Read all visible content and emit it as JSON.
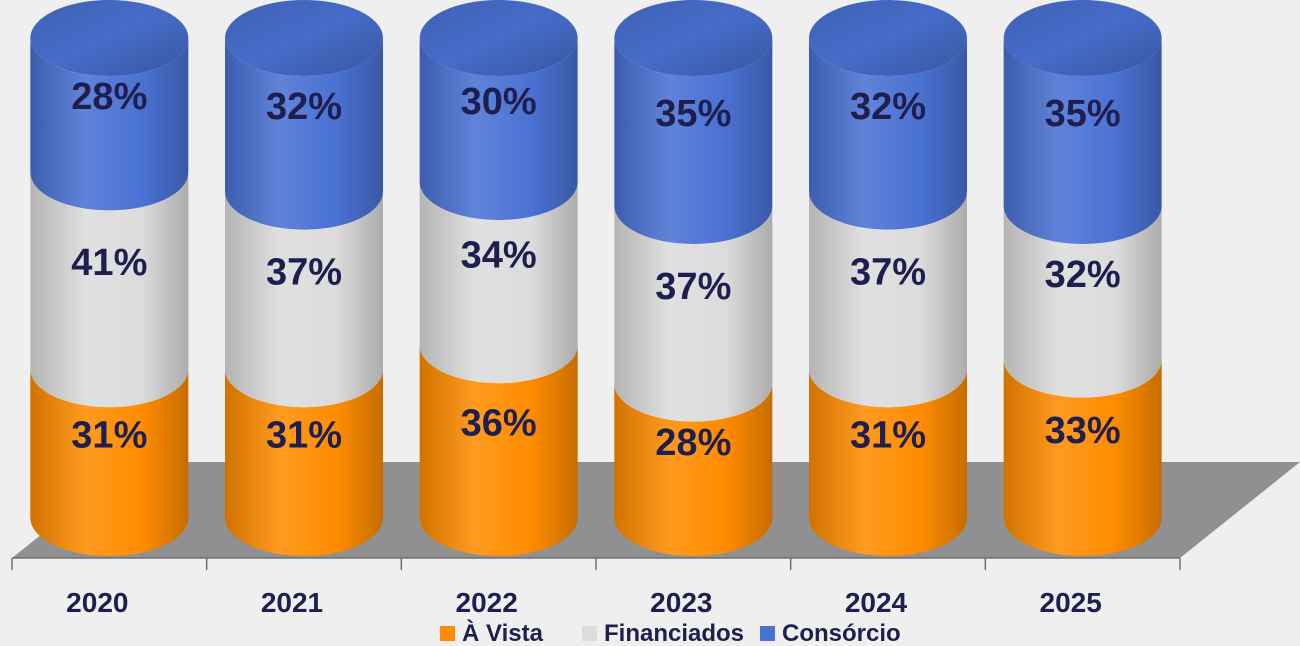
{
  "chart_data": {
    "type": "bar",
    "stacked": true,
    "percent_stacked": true,
    "style": "3d-cylinder",
    "categories": [
      "2020",
      "2021",
      "2022",
      "2023",
      "2024",
      "2025"
    ],
    "series": [
      {
        "name": "À Vista",
        "values": [
          31,
          31,
          36,
          28,
          31,
          33
        ],
        "color": "#ff8c00",
        "labels": [
          "31%",
          "31%",
          "36%",
          "28%",
          "31%",
          "33%"
        ]
      },
      {
        "name": "Financiados",
        "values": [
          41,
          37,
          34,
          37,
          37,
          32
        ],
        "color": "#dcdcdc",
        "labels": [
          "41%",
          "37%",
          "34%",
          "37%",
          "37%",
          "32%"
        ]
      },
      {
        "name": "Consórcio",
        "values": [
          28,
          32,
          30,
          35,
          32,
          35
        ],
        "color": "#4a72d4",
        "labels": [
          "28%",
          "32%",
          "30%",
          "35%",
          "32%",
          "35%"
        ]
      }
    ],
    "ylim": [
      0,
      100
    ],
    "legend_position": "bottom",
    "grid": false,
    "floor_color": "#909090",
    "title": "",
    "xlabel": "",
    "ylabel": ""
  }
}
